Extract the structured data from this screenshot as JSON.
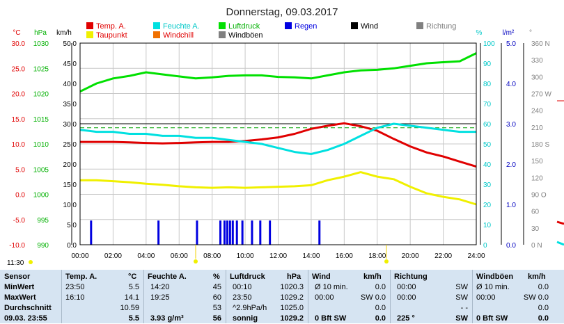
{
  "title": "Donnerstag, 09.03.2017",
  "legend": [
    {
      "label": "Temp. A.",
      "color": "#e00000"
    },
    {
      "label": "Feuchte A.",
      "color": "#00e0e0"
    },
    {
      "label": "Luftdruck",
      "color": "#00e000"
    },
    {
      "label": "Regen",
      "color": "#0000e0"
    },
    {
      "label": "Wind",
      "color": "#000000"
    },
    {
      "label": "Richtung",
      "color": "#808080"
    },
    {
      "label": "Taupunkt",
      "color": "#f0f000"
    },
    {
      "label": "Windchill",
      "color": "#f07000"
    },
    {
      "label": "Windböen",
      "color": "#808080"
    }
  ],
  "units": {
    "c": "°C",
    "hpa": "hPa",
    "kmh": "km/h",
    "pct": "%",
    "lm2": "l/m²",
    "deg": "°"
  },
  "markers": {
    "sunrise": "11:30"
  },
  "chart_data": {
    "type": "line",
    "title": "Donnerstag, 09.03.2017",
    "x": [
      "00:00",
      "01:00",
      "02:00",
      "03:00",
      "04:00",
      "05:00",
      "06:00",
      "07:00",
      "08:00",
      "09:00",
      "10:00",
      "11:00",
      "12:00",
      "13:00",
      "14:00",
      "15:00",
      "16:00",
      "17:00",
      "18:00",
      "19:00",
      "20:00",
      "21:00",
      "22:00",
      "23:00",
      "24:00"
    ],
    "axes": {
      "x_ticks": [
        "00:00",
        "02:00",
        "04:00",
        "06:00",
        "08:00",
        "10:00",
        "12:00",
        "14:00",
        "16:00",
        "18:00",
        "20:00",
        "22:00",
        "24:00"
      ],
      "temp_ticks": [
        "30.0",
        "25.0",
        "20.0",
        "15.0",
        "10.0",
        "5.0",
        "0.0",
        "-5.0",
        "-10.0"
      ],
      "temp_range": [
        -10,
        30
      ],
      "hpa_ticks": [
        "1030",
        "1025",
        "1020",
        "1015",
        "1010",
        "1005",
        "1000",
        "995",
        "990"
      ],
      "hpa_range": [
        990,
        1030
      ],
      "kmh_ticks": [
        "50.0",
        "45.0",
        "40.0",
        "35.0",
        "30.0",
        "25.0",
        "20.0",
        "15.0",
        "10.0",
        "5.0",
        "0.0"
      ],
      "kmh_range": [
        0,
        50
      ],
      "pct_ticks": [
        "100",
        "90",
        "80",
        "70",
        "60",
        "50",
        "40",
        "30",
        "20",
        "10",
        "0"
      ],
      "pct_range": [
        0,
        100
      ],
      "rain_ticks": [
        "5.0",
        "4.0",
        "3.0",
        "2.0",
        "1.0",
        "0.0"
      ],
      "rain_range": [
        0,
        5
      ],
      "dir_ticks": [
        "360 N",
        "330",
        "300",
        "270 W",
        "240",
        "210",
        "180 S",
        "150",
        "120",
        "90 O",
        "60",
        "30",
        "0 N"
      ],
      "dir_range": [
        0,
        360
      ]
    },
    "series": [
      {
        "name": "Temp. A.",
        "color": "#e00000",
        "axis": "temp",
        "values": [
          10.4,
          10.4,
          10.4,
          10.3,
          10.2,
          10.1,
          10.2,
          10.3,
          10.4,
          10.4,
          10.6,
          10.9,
          11.3,
          12.0,
          13.0,
          13.6,
          14.1,
          13.5,
          12.6,
          11.0,
          9.5,
          8.3,
          7.5,
          6.5,
          5.5
        ]
      },
      {
        "name": "Feuchte A.",
        "color": "#00e0e0",
        "axis": "pct",
        "values": [
          57,
          56,
          56,
          55,
          55,
          54,
          54,
          53,
          53,
          52,
          51,
          50,
          48,
          46,
          45,
          47,
          50,
          54,
          58,
          60,
          59,
          58,
          57,
          56,
          56
        ]
      },
      {
        "name": "Luftdruck",
        "color": "#00e000",
        "axis": "hpa",
        "values": [
          1020.4,
          1022.0,
          1023.0,
          1023.5,
          1024.2,
          1023.8,
          1023.4,
          1023.0,
          1023.2,
          1023.5,
          1023.6,
          1023.6,
          1023.3,
          1023.2,
          1023.0,
          1023.6,
          1024.2,
          1024.6,
          1024.7,
          1025.0,
          1025.5,
          1026.0,
          1026.2,
          1026.4,
          1028.0
        ]
      },
      {
        "name": "Taupunkt",
        "color": "#f0f000",
        "axis": "temp",
        "values": [
          2.8,
          2.8,
          2.6,
          2.4,
          2.1,
          1.9,
          1.6,
          1.4,
          1.3,
          1.4,
          1.3,
          1.4,
          1.5,
          1.6,
          1.8,
          2.8,
          3.5,
          4.4,
          3.5,
          3.0,
          1.5,
          0.2,
          -0.5,
          -1.0,
          -2.0
        ]
      },
      {
        "name": "Regen",
        "color": "#0000e0",
        "axis": "rain",
        "bars": [
          {
            "x": "00:40",
            "value": 0.6
          },
          {
            "x": "04:45",
            "value": 0.6
          },
          {
            "x": "07:05",
            "value": 0.6
          },
          {
            "x": "08:30",
            "value": 0.6
          },
          {
            "x": "08:45",
            "value": 0.6
          },
          {
            "x": "08:55",
            "value": 0.6
          },
          {
            "x": "09:05",
            "value": 0.6
          },
          {
            "x": "09:15",
            "value": 0.6
          },
          {
            "x": "09:30",
            "value": 0.6
          },
          {
            "x": "09:50",
            "value": 0.6
          },
          {
            "x": "10:25",
            "value": 0.6
          },
          {
            "x": "10:55",
            "value": 0.6
          },
          {
            "x": "11:30",
            "value": 0.6
          },
          {
            "x": "14:30",
            "value": 0.6
          }
        ]
      }
    ],
    "reference_line": {
      "axis": "kmh",
      "value": 29,
      "color": "#00a000",
      "style": "dashed"
    }
  },
  "table": {
    "header": {
      "sensor": "Sensor",
      "temp": "Temp. A.",
      "temp_unit": "°C",
      "hum": "Feuchte A.",
      "hum_unit": "%",
      "press": "Luftdruck",
      "press_unit": "hPa",
      "wind": "Wind",
      "wind_unit": "km/h",
      "dir": "Richtung",
      "gust": "Windböen",
      "gust_unit": "km/h"
    },
    "rows": [
      {
        "label": "MinWert",
        "temp_time": "23:50",
        "temp_val": "5.5",
        "hum_time": "14:20",
        "hum_val": "45",
        "press_time": "00:10",
        "press_val": "1020.3",
        "wind_time": "Ø 10 min.",
        "wind_val": "0.0",
        "dir_time": "00:00",
        "dir_val": "SW",
        "gust_time": "Ø 10 min.",
        "gust_val": "0.0"
      },
      {
        "label": "MaxWert",
        "temp_time": "16:10",
        "temp_val": "14.1",
        "hum_time": "19:25",
        "hum_val": "60",
        "press_time": "23:50",
        "press_val": "1029.2",
        "wind_time": "00:00",
        "wind_val": "SW 0.0",
        "dir_time": "00:00",
        "dir_val": "SW",
        "gust_time": "00:00",
        "gust_val": "SW 0.0"
      },
      {
        "label": "Durchschnitt",
        "temp_time": "",
        "temp_val": "10.59",
        "hum_time": "",
        "hum_val": "53",
        "press_time": "^2.9hPa/h",
        "press_val": "1025.0",
        "wind_time": "",
        "wind_val": "0.0",
        "dir_time": "",
        "dir_val": "- -",
        "gust_time": "",
        "gust_val": "0.0"
      },
      {
        "label": "09.03. 23:55",
        "temp_time": "",
        "temp_val": "5.5",
        "hum_time": "3.93 g/m³",
        "hum_val": "56",
        "press_time": "sonnig",
        "press_val": "1029.2",
        "wind_time": "0 Bft SW",
        "wind_val": "0.0",
        "dir_time": "225 °",
        "dir_val": "SW",
        "gust_time": "0 Bft SW",
        "gust_val": "0.0"
      }
    ]
  }
}
